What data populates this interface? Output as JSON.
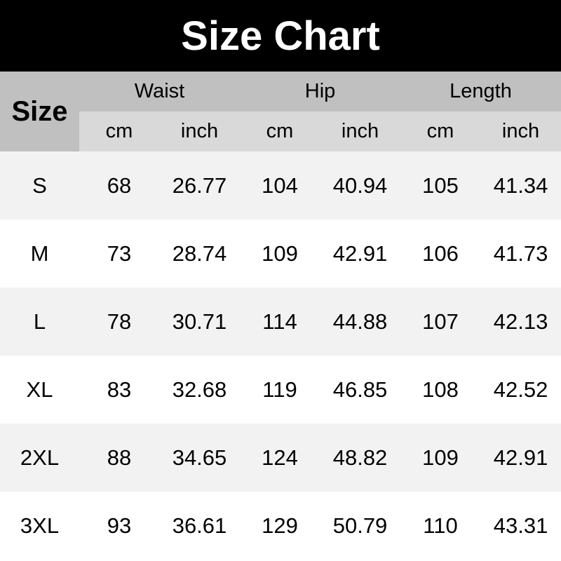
{
  "title": "Size Chart",
  "chart_data": {
    "type": "table",
    "title": "Size Chart",
    "row_header": "Size",
    "groups": [
      "Waist",
      "Hip",
      "Length"
    ],
    "units": [
      "cm",
      "inch",
      "cm",
      "inch",
      "cm",
      "inch"
    ],
    "rows": [
      {
        "size": "S",
        "values": [
          "68",
          "26.77",
          "104",
          "40.94",
          "105",
          "41.34"
        ]
      },
      {
        "size": "M",
        "values": [
          "73",
          "28.74",
          "109",
          "42.91",
          "106",
          "41.73"
        ]
      },
      {
        "size": "L",
        "values": [
          "78",
          "30.71",
          "114",
          "44.88",
          "107",
          "42.13"
        ]
      },
      {
        "size": "XL",
        "values": [
          "83",
          "32.68",
          "119",
          "46.85",
          "108",
          "42.52"
        ]
      },
      {
        "size": "2XL",
        "values": [
          "88",
          "34.65",
          "124",
          "48.82",
          "109",
          "42.91"
        ]
      },
      {
        "size": "3XL",
        "values": [
          "93",
          "36.61",
          "129",
          "50.79",
          "110",
          "43.31"
        ]
      }
    ]
  }
}
